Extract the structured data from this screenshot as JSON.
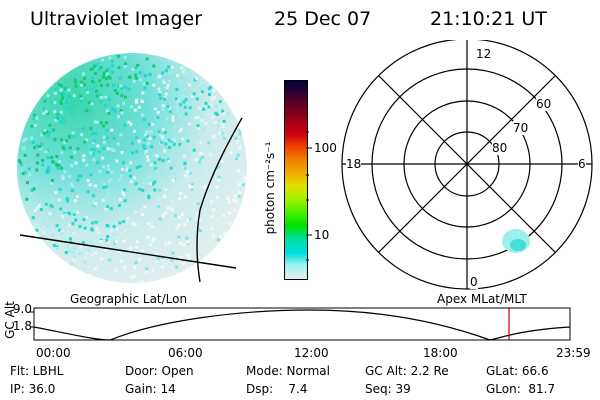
{
  "header": {
    "instrument": "Ultraviolet Imager",
    "date": "25 Dec 07",
    "time": "21:10:21 UT"
  },
  "colorbar": {
    "unit_label": "photon cm⁻²s⁻¹",
    "tick_labels": [
      "100",
      "10"
    ],
    "colors": [
      "#000040",
      "#3a0030",
      "#6a0020",
      "#a00018",
      "#d00010",
      "#f04000",
      "#f08000",
      "#f0b000",
      "#e0e000",
      "#a0f000",
      "#40f000",
      "#00e000",
      "#00e0a0",
      "#00e0e0",
      "#a0f0f0",
      "#e0f0f0"
    ]
  },
  "left_panel": {
    "label": "Geographic Lat/Lon"
  },
  "right_panel": {
    "label": "Apex MLat/MLT",
    "mlt_labels": {
      "top": "12",
      "bottom": "0",
      "left": "18",
      "right": "6"
    },
    "lat_labels": [
      "60",
      "70",
      "80"
    ]
  },
  "timeline": {
    "ylabel": "GC Alt",
    "y_ticks": [
      "9.0",
      "1.8"
    ],
    "x_ticks": [
      "00:00",
      "06:00",
      "12:00",
      "18:00",
      "23:59"
    ],
    "marker_color": "#c00000"
  },
  "info": {
    "row1": [
      "Flt: LBHL",
      "Door: Open",
      "Mode: Normal",
      "GC Alt: 2.2 Re",
      "GLat: 66.6"
    ],
    "row2": [
      "IP: 36.0",
      "Gain: 14",
      "Dsp:    7.4",
      "Seq: 39",
      "GLon:  81.7"
    ]
  }
}
